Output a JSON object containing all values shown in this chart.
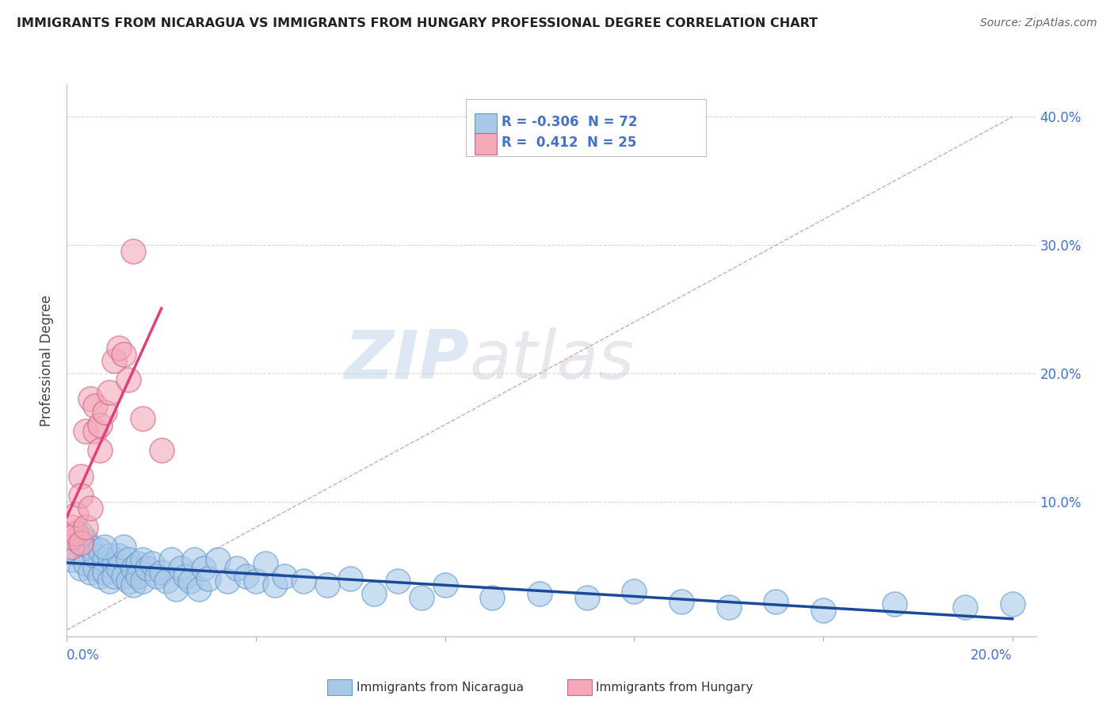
{
  "title": "IMMIGRANTS FROM NICARAGUA VS IMMIGRANTS FROM HUNGARY PROFESSIONAL DEGREE CORRELATION CHART",
  "source": "Source: ZipAtlas.com",
  "ylabel": "Professional Degree",
  "y_ticks": [
    0.0,
    0.1,
    0.2,
    0.3,
    0.4
  ],
  "y_tick_labels": [
    "",
    "10.0%",
    "20.0%",
    "30.0%",
    "40.0%"
  ],
  "x_ticks": [
    0.0,
    0.04,
    0.08,
    0.12,
    0.16,
    0.2
  ],
  "xlim": [
    0.0,
    0.205
  ],
  "ylim": [
    -0.005,
    0.425
  ],
  "blue_R": -0.306,
  "blue_N": 72,
  "pink_R": 0.412,
  "pink_N": 25,
  "blue_color": "#a8c8e8",
  "blue_edge_color": "#6699cc",
  "pink_color": "#f4a8b8",
  "pink_edge_color": "#cc6688",
  "blue_line_color": "#1a4a9a",
  "pink_line_color": "#e0407a",
  "ref_line_color": "#d0a0a0",
  "grid_color": "#d8d8d8",
  "legend_blue_label": "Immigrants from Nicaragua",
  "legend_pink_label": "Immigrants from Hungary",
  "watermark_zip": "ZIP",
  "watermark_atlas": "atlas",
  "background_color": "#ffffff",
  "blue_scatter_x": [
    0.001,
    0.002,
    0.003,
    0.003,
    0.004,
    0.004,
    0.005,
    0.005,
    0.006,
    0.006,
    0.007,
    0.007,
    0.008,
    0.008,
    0.009,
    0.009,
    0.01,
    0.01,
    0.011,
    0.011,
    0.012,
    0.012,
    0.013,
    0.013,
    0.014,
    0.014,
    0.015,
    0.015,
    0.016,
    0.016,
    0.017,
    0.018,
    0.019,
    0.02,
    0.021,
    0.022,
    0.023,
    0.024,
    0.025,
    0.026,
    0.027,
    0.028,
    0.029,
    0.03,
    0.032,
    0.034,
    0.036,
    0.038,
    0.04,
    0.042,
    0.044,
    0.046,
    0.05,
    0.055,
    0.06,
    0.065,
    0.07,
    0.075,
    0.08,
    0.09,
    0.1,
    0.11,
    0.12,
    0.13,
    0.14,
    0.15,
    0.16,
    0.175,
    0.19,
    0.2,
    0.003,
    0.008
  ],
  "blue_scatter_y": [
    0.055,
    0.06,
    0.048,
    0.068,
    0.052,
    0.07,
    0.045,
    0.065,
    0.048,
    0.058,
    0.042,
    0.062,
    0.055,
    0.045,
    0.058,
    0.038,
    0.052,
    0.042,
    0.048,
    0.058,
    0.042,
    0.065,
    0.038,
    0.055,
    0.048,
    0.035,
    0.052,
    0.042,
    0.055,
    0.038,
    0.048,
    0.052,
    0.042,
    0.045,
    0.038,
    0.055,
    0.032,
    0.048,
    0.042,
    0.038,
    0.055,
    0.032,
    0.048,
    0.04,
    0.055,
    0.038,
    0.048,
    0.042,
    0.038,
    0.052,
    0.035,
    0.042,
    0.038,
    0.035,
    0.04,
    0.028,
    0.038,
    0.025,
    0.035,
    0.025,
    0.028,
    0.025,
    0.03,
    0.022,
    0.018,
    0.022,
    0.015,
    0.02,
    0.018,
    0.02,
    0.075,
    0.065
  ],
  "pink_scatter_x": [
    0.001,
    0.001,
    0.001,
    0.002,
    0.002,
    0.003,
    0.003,
    0.003,
    0.004,
    0.004,
    0.005,
    0.005,
    0.006,
    0.006,
    0.007,
    0.007,
    0.008,
    0.009,
    0.01,
    0.011,
    0.012,
    0.013,
    0.014,
    0.016,
    0.02
  ],
  "pink_scatter_y": [
    0.065,
    0.08,
    0.072,
    0.075,
    0.09,
    0.068,
    0.12,
    0.105,
    0.08,
    0.155,
    0.095,
    0.18,
    0.155,
    0.175,
    0.14,
    0.16,
    0.17,
    0.185,
    0.21,
    0.22,
    0.215,
    0.195,
    0.295,
    0.165,
    0.14
  ]
}
